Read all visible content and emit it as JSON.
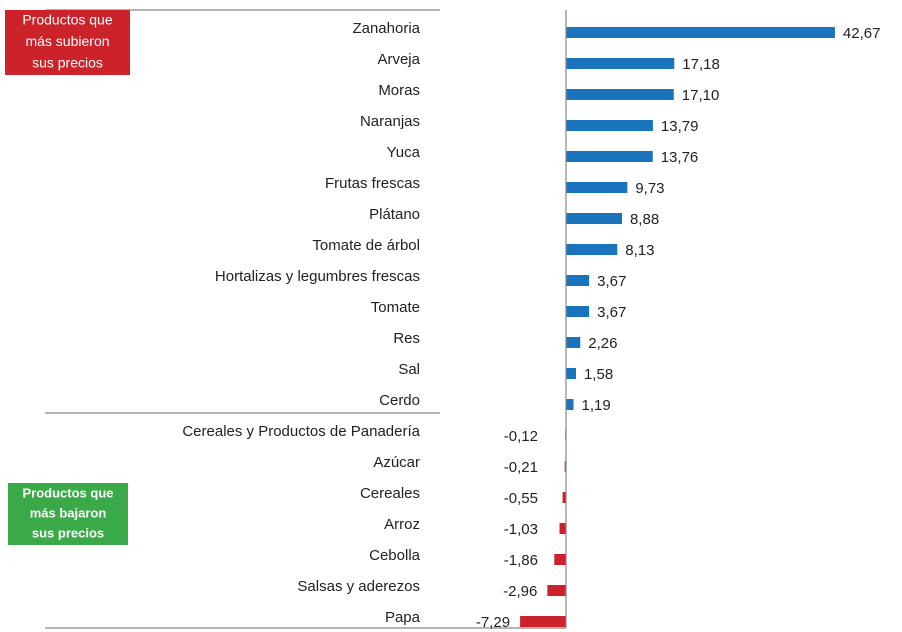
{
  "chart_data": {
    "type": "hbar",
    "categories": [
      "Zanahoria",
      "Arveja",
      "Moras",
      "Naranjas",
      "Yuca",
      "Frutas frescas",
      "Plátano",
      "Tomate de árbol",
      "Hortalizas y legumbres frescas",
      "Tomate",
      "Res",
      "Sal",
      "Cerdo",
      "Cereales y Productos de Panadería",
      "Azúcar",
      "Cereales",
      "Arroz",
      "Cebolla",
      "Salsas y aderezos",
      "Papa"
    ],
    "values": [
      42.67,
      17.18,
      17.1,
      13.79,
      13.76,
      9.73,
      8.88,
      8.13,
      3.67,
      3.67,
      2.26,
      1.58,
      1.19,
      -0.12,
      -0.21,
      -0.55,
      -1.03,
      -1.86,
      -2.96,
      -7.29
    ],
    "value_labels": [
      "42,67",
      "17,18",
      "17,10",
      "13,79",
      "13,76",
      "9,73",
      "8,88",
      "8,13",
      "3,67",
      "3,67",
      "2,26",
      "1,58",
      "1,19",
      "-0,12",
      "-0,21",
      "-0,55",
      "-1,03",
      "-1,86",
      "-2,96",
      "-7,29"
    ],
    "positive_color": "#1a73bd",
    "negative_color": "#cc2229",
    "xlim": [
      -10,
      45
    ],
    "annotations": [
      {
        "lines": [
          "Productos que",
          "más subieron",
          "sus precios"
        ],
        "color": "#cc2229"
      },
      {
        "lines": [
          "Productos que",
          "más bajaron",
          "sus precios"
        ],
        "color": "#3aaa48"
      }
    ]
  }
}
